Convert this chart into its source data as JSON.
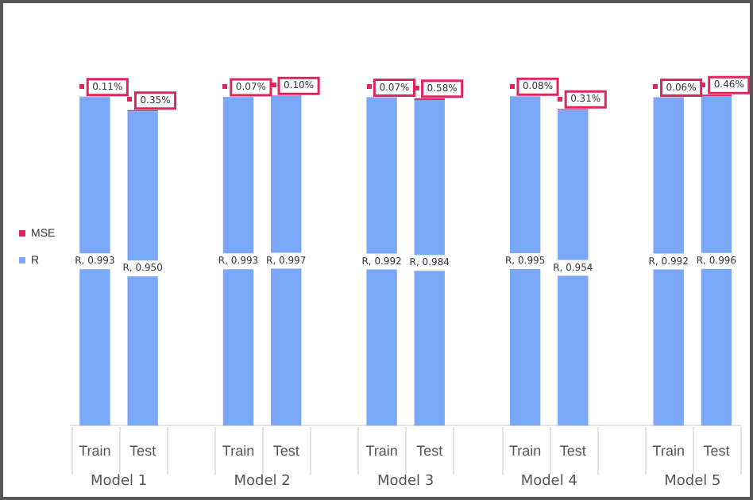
{
  "chart_data": {
    "type": "bar",
    "stacked": true,
    "categories": [
      "Train",
      "Test",
      null,
      "Train",
      "Test",
      null,
      "Train",
      "Test",
      null,
      "Train",
      "Test",
      null,
      "Train",
      "Test"
    ],
    "series": [
      {
        "name": "R",
        "color": "#7aa7f7",
        "values": [
          0.993,
          0.95,
          null,
          0.993,
          0.997,
          null,
          0.992,
          0.984,
          null,
          0.995,
          0.954,
          null,
          0.992,
          0.996
        ],
        "value_labels": [
          "R, 0.993",
          "R, 0.950",
          null,
          "R, 0.993",
          "R, 0.997",
          null,
          "R, 0.992",
          "R, 0.984",
          null,
          "R, 0.995",
          "R, 0.954",
          null,
          "R, 0.992",
          "R, 0.996"
        ]
      },
      {
        "name": "MSE",
        "color": "#e0245e",
        "values": [
          0.0011,
          0.0035,
          null,
          0.0007,
          0.001,
          null,
          0.0007,
          0.0058,
          null,
          0.0008,
          0.0031,
          null,
          0.0006,
          0.0046
        ],
        "value_labels": [
          "0.11%",
          "0.35%",
          null,
          "0.07%",
          "0.10%",
          null,
          "0.07%",
          "0.58%",
          null,
          "0.08%",
          "0.31%",
          null,
          "0.06%",
          "0.46%"
        ]
      }
    ],
    "tick_labels": "x",
    "legend": "left",
    "annotations": [
      "Model 1",
      "Model 2",
      "Model 3",
      "Model 4",
      "Model 5"
    ]
  }
}
